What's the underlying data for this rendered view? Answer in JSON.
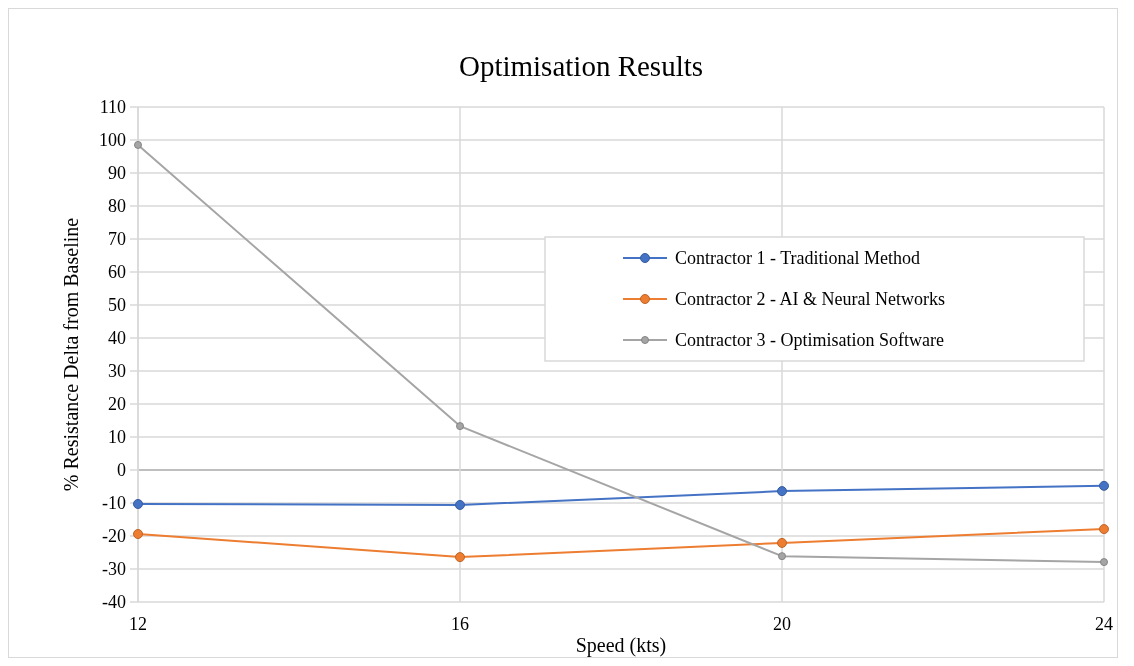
{
  "chart_data": {
    "type": "line",
    "title": "Optimisation  Results",
    "xlabel": "Speed (kts)",
    "ylabel": "% Resistance Delta from Baseline",
    "x": [
      12,
      16,
      20,
      24
    ],
    "xlim": [
      12,
      24
    ],
    "xticks": [
      12,
      16,
      20,
      24
    ],
    "ylim": [
      -40,
      110
    ],
    "yticks": [
      -40,
      -30,
      -20,
      -10,
      0,
      10,
      20,
      30,
      40,
      50,
      60,
      70,
      80,
      90,
      100,
      110
    ],
    "grid": true,
    "legend": "right",
    "marker": "circle",
    "line_style": "solid",
    "series": [
      {
        "name": "Contractor 1 - Traditional Method",
        "color": "#4472c4",
        "values": [
          -10.3,
          -10.6,
          -6.4,
          -4.8
        ]
      },
      {
        "name": "Contractor 2 - AI & Neural Networks",
        "color": "#ed7d31",
        "values": [
          -19.4,
          -26.4,
          -22.1,
          -17.9
        ]
      },
      {
        "name": "Contractor 3 - Optimisation Software",
        "color": "#a5a5a5",
        "values": [
          98.5,
          13.3,
          -26.1,
          -27.9
        ]
      }
    ]
  }
}
